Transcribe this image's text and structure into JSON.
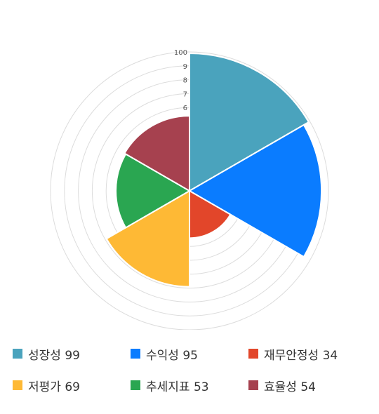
{
  "chart_data": {
    "type": "polar-area",
    "title": "",
    "rlim": [
      0,
      100
    ],
    "tick_labels": [
      "100",
      "9",
      "8",
      "7",
      "6"
    ],
    "categories": [
      "성장성",
      "수익성",
      "재무안정성",
      "저평가",
      "추세지표",
      "효율성"
    ],
    "values": [
      99,
      95,
      34,
      69,
      53,
      54
    ],
    "colors": [
      "#4aa3bd",
      "#0a7cff",
      "#e2462a",
      "#feb935",
      "#2aa651",
      "#a6414f"
    ],
    "legend_position": "bottom",
    "legend_labels": [
      "성장성 99",
      "수익성 95",
      "재무안정성 34",
      "저평가 69",
      "추세지표 53",
      "효율성 54"
    ]
  }
}
